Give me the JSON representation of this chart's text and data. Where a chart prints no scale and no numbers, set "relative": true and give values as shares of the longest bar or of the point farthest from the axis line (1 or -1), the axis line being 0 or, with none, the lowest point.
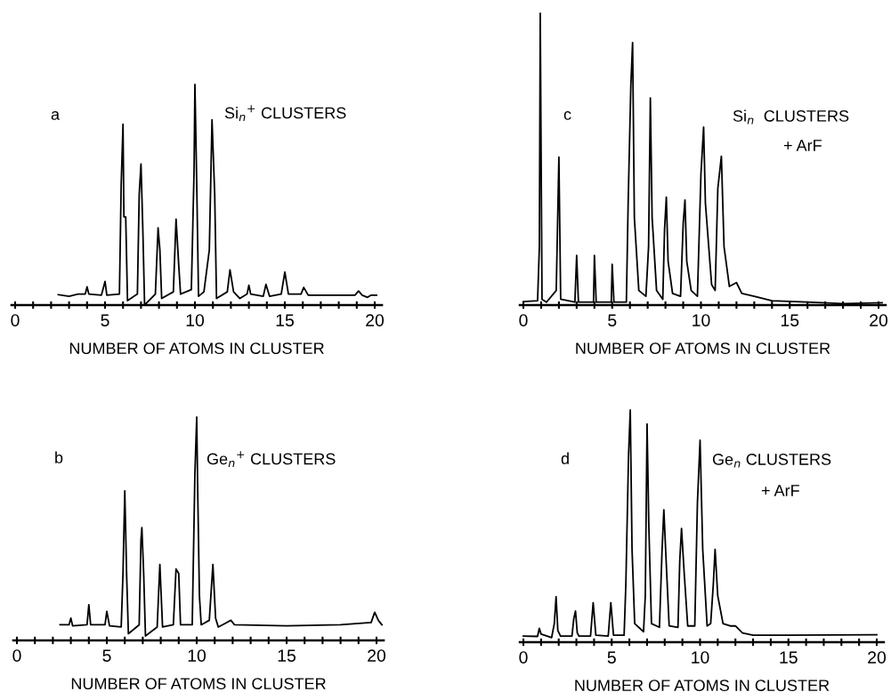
{
  "chart_data": [
    {
      "type": "line",
      "relative": true,
      "xlabel": "NUMBER OF ATOMS IN CLUSTER",
      "annotations": [
        "a",
        "Si$_{n}$$^{+}$ CLUSTERS"
      ],
      "xlim": [
        -0.2,
        20.4
      ],
      "xticks": [
        0,
        {
          "value": 1,
          "label": null
        },
        {
          "value": 2,
          "label": null
        },
        {
          "value": 3,
          "label": null
        },
        {
          "value": 4,
          "label": null
        },
        5,
        {
          "value": 6,
          "label": null
        },
        {
          "value": 7,
          "label": null
        },
        {
          "value": 8,
          "label": null
        },
        {
          "value": 9,
          "label": null
        },
        10,
        {
          "value": 11,
          "label": null
        },
        {
          "value": 12,
          "label": null
        },
        {
          "value": 13,
          "label": null
        },
        {
          "value": 14,
          "label": null
        },
        15,
        {
          "value": 16,
          "label": null
        },
        {
          "value": 17,
          "label": null
        },
        {
          "value": 18,
          "label": null
        },
        {
          "value": 19,
          "label": null
        },
        20
      ],
      "series": [
        {
          "color": "#000000",
          "x": [
            2.4,
            3,
            3.5,
            3.9,
            4.0,
            4.1,
            4.8,
            5.0,
            5.1,
            5.8,
            5.9,
            6.0,
            6.05,
            6.15,
            6.25,
            6.8,
            6.9,
            7.0,
            7.1,
            7.2,
            7.8,
            7.95,
            8.05,
            8.15,
            8.8,
            8.95,
            9.1,
            9.2,
            9.8,
            9.95,
            10.0,
            10.1,
            10.2,
            10.5,
            10.8,
            10.95,
            11.1,
            11.2,
            11.8,
            11.95,
            12.15,
            12.5,
            12.9,
            13.0,
            13.1,
            13.8,
            13.95,
            14.15,
            14.8,
            15.0,
            15.2,
            15.9,
            16.05,
            16.3,
            18.9,
            19.1,
            19.3,
            19.6,
            19.8,
            20.1
          ],
          "values": [
            0.047,
            0.04,
            0.05,
            0.05,
            0.083,
            0.05,
            0.045,
            0.107,
            0.045,
            0.05,
            0.55,
            0.82,
            0.4,
            0.4,
            0.02,
            0.05,
            0.5,
            0.64,
            0.35,
            0.0,
            0.05,
            0.35,
            0.25,
            0.03,
            0.06,
            0.39,
            0.18,
            0.05,
            0.07,
            0.6,
            1.0,
            0.55,
            0.04,
            0.06,
            0.25,
            0.84,
            0.5,
            0.03,
            0.06,
            0.16,
            0.06,
            0.03,
            0.05,
            0.09,
            0.05,
            0.04,
            0.094,
            0.04,
            0.05,
            0.15,
            0.05,
            0.05,
            0.08,
            0.045,
            0.045,
            0.064,
            0.045,
            0.035,
            0.045,
            0.045
          ]
        }
      ]
    },
    {
      "type": "line",
      "relative": true,
      "xlabel": "NUMBER OF ATOMS IN CLUSTER",
      "annotations": [
        "c",
        "Si$_{n}$  CLUSTERS",
        "+ ArF"
      ],
      "xlim": [
        -0.2,
        20.4
      ],
      "xticks": [
        0,
        {
          "value": 1,
          "label": null
        },
        {
          "value": 2,
          "label": null
        },
        {
          "value": 3,
          "label": null
        },
        {
          "value": 4,
          "label": null
        },
        5,
        {
          "value": 6,
          "label": null
        },
        {
          "value": 7,
          "label": null
        },
        {
          "value": 8,
          "label": null
        },
        {
          "value": 9,
          "label": null
        },
        10,
        {
          "value": 11,
          "label": null
        },
        {
          "value": 12,
          "label": null
        },
        {
          "value": 13,
          "label": null
        },
        {
          "value": 14,
          "label": null
        },
        15,
        {
          "value": 16,
          "label": null
        },
        {
          "value": 17,
          "label": null
        },
        {
          "value": 18,
          "label": null
        },
        {
          "value": 19,
          "label": null
        },
        20
      ],
      "series": [
        {
          "color": "#000000",
          "x": [
            0,
            0.8,
            0.9,
            0.95,
            1.05,
            1.3,
            1.85,
            2.0,
            2.1,
            2.9,
            3.0,
            3.1,
            3.95,
            4.0,
            4.1,
            4.95,
            5.0,
            5.1,
            5.8,
            5.9,
            6.05,
            6.15,
            6.25,
            6.5,
            6.9,
            7.05,
            7.15,
            7.25,
            7.5,
            7.85,
            7.95,
            8.05,
            8.15,
            8.4,
            8.85,
            9.0,
            9.1,
            9.2,
            9.45,
            9.8,
            10.0,
            10.15,
            10.25,
            10.6,
            10.8,
            10.95,
            11.15,
            11.3,
            11.6,
            12.0,
            12.3,
            13,
            14,
            16,
            18,
            20.2
          ],
          "values": [
            0.012,
            0.015,
            0.2,
            1.0,
            0.02,
            0.01,
            0.05,
            0.507,
            0.02,
            0.01,
            0.17,
            0.01,
            0.01,
            0.17,
            0.01,
            0.01,
            0.14,
            0.01,
            0.01,
            0.35,
            0.75,
            0.9,
            0.3,
            0.05,
            0.03,
            0.2,
            0.71,
            0.3,
            0.05,
            0.02,
            0.26,
            0.37,
            0.15,
            0.04,
            0.03,
            0.28,
            0.36,
            0.15,
            0.05,
            0.03,
            0.45,
            0.61,
            0.35,
            0.07,
            0.05,
            0.4,
            0.51,
            0.2,
            0.064,
            0.077,
            0.04,
            0.03,
            0.015,
            0.01,
            0.005,
            0.008
          ]
        }
      ]
    },
    {
      "type": "line",
      "relative": true,
      "xlabel": "NUMBER OF ATOMS IN CLUSTER",
      "annotations": [
        "b",
        "Ge$_{n}$$^{+}$ CLUSTERS"
      ],
      "xlim": [
        -0.2,
        20.4
      ],
      "xticks": [
        0,
        {
          "value": 1,
          "label": null
        },
        {
          "value": 2,
          "label": null
        },
        {
          "value": 3,
          "label": null
        },
        {
          "value": 4,
          "label": null
        },
        5,
        {
          "value": 6,
          "label": null
        },
        {
          "value": 7,
          "label": null
        },
        {
          "value": 8,
          "label": null
        },
        {
          "value": 9,
          "label": null
        },
        10,
        {
          "value": 11,
          "label": null
        },
        {
          "value": 12,
          "label": null
        },
        {
          "value": 13,
          "label": null
        },
        {
          "value": 14,
          "label": null
        },
        15,
        {
          "value": 16,
          "label": null
        },
        {
          "value": 17,
          "label": null
        },
        {
          "value": 18,
          "label": null
        },
        {
          "value": 19,
          "label": null
        },
        20
      ],
      "series": [
        {
          "color": "#000000",
          "x": [
            2.4,
            2.9,
            3.0,
            3.1,
            3.9,
            4.0,
            4.1,
            4.9,
            5.0,
            5.15,
            5.8,
            5.9,
            6.0,
            6.1,
            6.2,
            6.8,
            6.9,
            6.95,
            7.05,
            7.15,
            7.8,
            7.95,
            8.1,
            8.7,
            8.85,
            9.0,
            9.1,
            9.75,
            9.9,
            10.0,
            10.05,
            10.15,
            10.25,
            10.7,
            10.9,
            11.05,
            11.2,
            11.9,
            12.1,
            15,
            18,
            19.7,
            19.9,
            20.1,
            20.3
          ],
          "values": [
            0.07,
            0.07,
            0.1,
            0.065,
            0.07,
            0.16,
            0.07,
            0.07,
            0.13,
            0.065,
            0.06,
            0.3,
            0.67,
            0.3,
            0.03,
            0.07,
            0.45,
            0.505,
            0.3,
            0.02,
            0.06,
            0.34,
            0.06,
            0.07,
            0.32,
            0.3,
            0.07,
            0.07,
            0.75,
            1.0,
            0.7,
            0.2,
            0.07,
            0.09,
            0.34,
            0.1,
            0.06,
            0.09,
            0.07,
            0.065,
            0.07,
            0.08,
            0.126,
            0.09,
            0.07
          ]
        }
      ]
    },
    {
      "type": "line",
      "relative": true,
      "xlabel": "NUMBER OF ATOMS IN CLUSTER",
      "annotations": [
        "d",
        "Ge$_{n}$ CLUSTERS",
        "+ ArF"
      ],
      "xlim": [
        -0.2,
        20.4
      ],
      "xticks": [
        0,
        {
          "value": 1,
          "label": null
        },
        {
          "value": 2,
          "label": null
        },
        {
          "value": 3,
          "label": null
        },
        {
          "value": 4,
          "label": null
        },
        5,
        {
          "value": 6,
          "label": null
        },
        {
          "value": 7,
          "label": null
        },
        {
          "value": 8,
          "label": null
        },
        {
          "value": 9,
          "label": null
        },
        10,
        {
          "value": 11,
          "label": null
        },
        {
          "value": 12,
          "label": null
        },
        {
          "value": 13,
          "label": null
        },
        {
          "value": 14,
          "label": null
        },
        15,
        {
          "value": 16,
          "label": null
        },
        {
          "value": 17,
          "label": null
        },
        {
          "value": 18,
          "label": null
        },
        {
          "value": 19,
          "label": null
        },
        20
      ],
      "series": [
        {
          "color": "#000000",
          "x": [
            0,
            0.8,
            0.9,
            1.0,
            1.6,
            1.75,
            1.85,
            1.95,
            2.1,
            2.75,
            2.85,
            2.95,
            3.05,
            3.15,
            3.8,
            3.95,
            4.1,
            4.8,
            4.95,
            5.1,
            5.7,
            5.8,
            5.95,
            6.05,
            6.15,
            6.3,
            6.8,
            6.9,
            7.0,
            7.1,
            7.25,
            7.7,
            7.85,
            7.95,
            8.05,
            8.25,
            8.75,
            8.85,
            8.95,
            9.1,
            9.3,
            9.7,
            9.85,
            10.0,
            10.15,
            10.4,
            10.6,
            10.75,
            10.85,
            11.0,
            11.3,
            11.7,
            12.0,
            12.4,
            13,
            15,
            20
          ],
          "values": [
            0.026,
            0.025,
            0.06,
            0.035,
            0.02,
            0.08,
            0.196,
            0.05,
            0.026,
            0.026,
            0.1,
            0.134,
            0.04,
            0.026,
            0.026,
            0.17,
            0.03,
            0.026,
            0.17,
            0.03,
            0.03,
            0.25,
            0.8,
            1.0,
            0.4,
            0.08,
            0.045,
            0.2,
            0.94,
            0.5,
            0.08,
            0.064,
            0.4,
            0.57,
            0.4,
            0.07,
            0.064,
            0.35,
            0.49,
            0.3,
            0.07,
            0.07,
            0.6,
            0.87,
            0.4,
            0.07,
            0.08,
            0.25,
            0.4,
            0.2,
            0.08,
            0.07,
            0.07,
            0.04,
            0.03,
            0.03,
            0.032
          ]
        }
      ]
    }
  ]
}
